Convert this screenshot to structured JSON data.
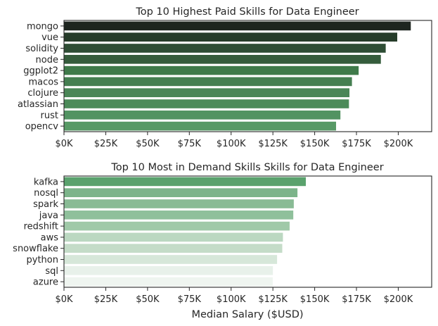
{
  "chart_data": [
    {
      "type": "bar",
      "orientation": "horizontal",
      "title": "Top 10 Highest Paid Skills for Data Engineer",
      "xlabel": "",
      "ylabel": "",
      "categories": [
        "mongo",
        "vue",
        "solidity",
        "node",
        "ggplot2",
        "macos",
        "clojure",
        "atlassian",
        "rust",
        "opencv"
      ],
      "values": [
        207500,
        199400,
        192500,
        189600,
        176300,
        172300,
        170800,
        170500,
        165400,
        162800
      ],
      "xlim": [
        0,
        220000
      ],
      "xticks": [
        0,
        25000,
        50000,
        75000,
        100000,
        125000,
        150000,
        175000,
        200000
      ],
      "xtick_labels": [
        "$0K",
        "$25K",
        "$50K",
        "$75K",
        "$100K",
        "$125K",
        "$150K",
        "$175K",
        "$200K"
      ],
      "colors": [
        "#1e251f",
        "#263c2a",
        "#2e4d35",
        "#355c3c",
        "#3f7a4a",
        "#457f51",
        "#4a8657",
        "#4c8b59",
        "#529362",
        "#579965"
      ],
      "grid": false,
      "legend": "none"
    },
    {
      "type": "bar",
      "orientation": "horizontal",
      "title": "Top 10 Most in Demand Skills Skills for Data Engineer",
      "xlabel": "Median Salary ($USD)",
      "ylabel": "",
      "categories": [
        "kafka",
        "nosql",
        "spark",
        "java",
        "redshift",
        "aws",
        "snowflake",
        "python",
        "sql",
        "azure"
      ],
      "values": [
        144700,
        139700,
        137500,
        137200,
        135000,
        131000,
        130600,
        127500,
        125000,
        124900
      ],
      "xlim": [
        0,
        220000
      ],
      "xticks": [
        0,
        25000,
        50000,
        75000,
        100000,
        125000,
        150000,
        175000,
        200000
      ],
      "xtick_labels": [
        "$0K",
        "$25K",
        "$50K",
        "$75K",
        "$100K",
        "$125K",
        "$150K",
        "$175K",
        "$200K"
      ],
      "colors": [
        "#5aa26d",
        "#7cb48a",
        "#89bb95",
        "#8fc09b",
        "#a0c9a8",
        "#bbd8c1",
        "#c4dcc8",
        "#d6e7d9",
        "#e8f1ea",
        "#eff5f0"
      ],
      "grid": false,
      "legend": "none"
    }
  ]
}
